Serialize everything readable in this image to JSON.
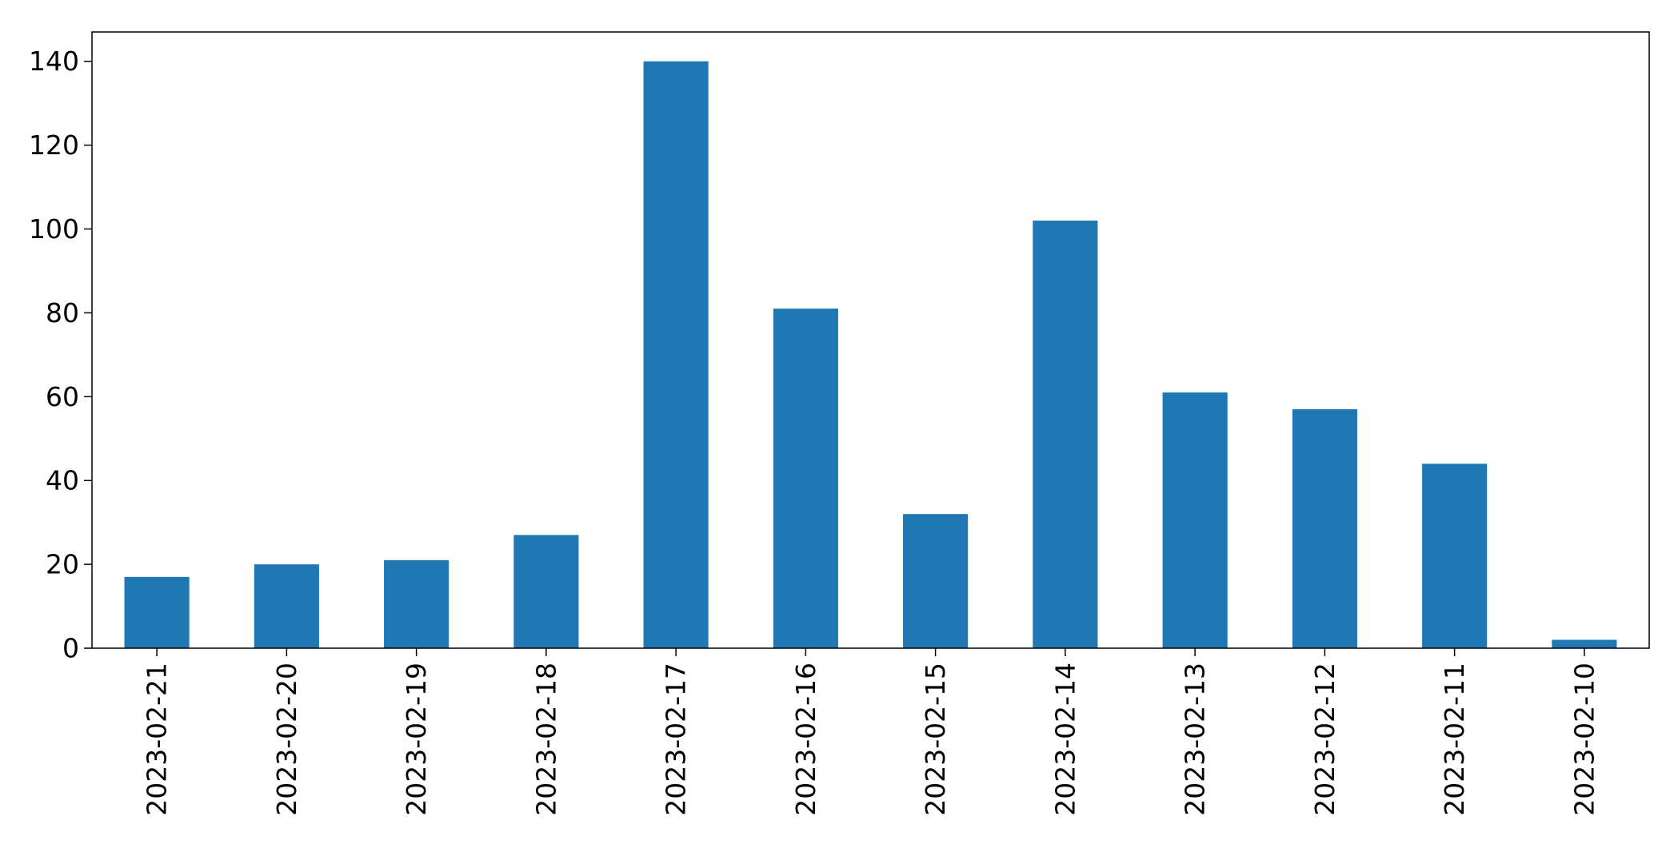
{
  "chart_data": {
    "type": "bar",
    "title": "",
    "xlabel": "",
    "ylabel": "",
    "categories": [
      "2023-02-21",
      "2023-02-20",
      "2023-02-19",
      "2023-02-18",
      "2023-02-17",
      "2023-02-16",
      "2023-02-15",
      "2023-02-14",
      "2023-02-13",
      "2023-02-12",
      "2023-02-11",
      "2023-02-10"
    ],
    "values": [
      17,
      20,
      21,
      27,
      140,
      81,
      32,
      102,
      61,
      57,
      44,
      2
    ],
    "ylim": [
      0,
      147
    ],
    "yticks": [
      "0",
      "20",
      "40",
      "60",
      "80",
      "100",
      "120",
      "140"
    ],
    "bar_color": "#1f77b4",
    "grid": false,
    "legend": "none"
  }
}
